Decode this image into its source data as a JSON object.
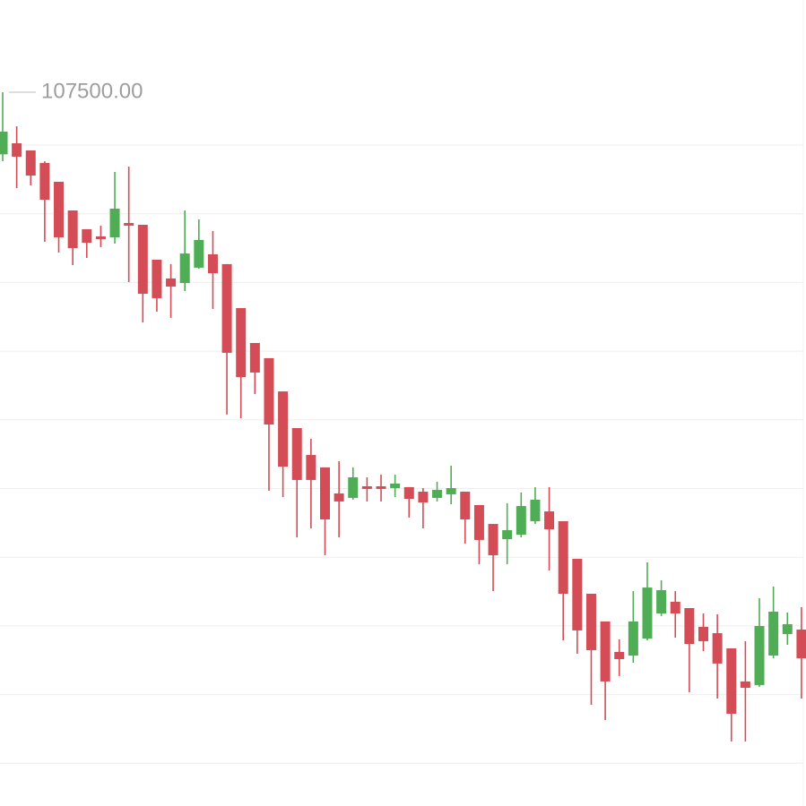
{
  "chart_data": {
    "type": "candlestick",
    "ylim": [
      102325,
      108169
    ],
    "up_color": "#4fae55",
    "down_color": "#d44c55",
    "max_annotation": {
      "value": 107500,
      "label": "107500.00"
    },
    "open": [
      107050,
      107130,
      107078,
      106987,
      106851,
      106643,
      106507,
      106455,
      106448,
      106552,
      106539,
      106286,
      106150,
      106117,
      106228,
      106325,
      106254,
      105935,
      105682,
      105572,
      105331,
      105065,
      104870,
      104780,
      104591,
      104559,
      104643,
      104643,
      104630,
      104637,
      104604,
      104559,
      104585,
      104604,
      104507,
      104370,
      104260,
      104292,
      104390,
      104461,
      104390,
      104117,
      103864,
      103663,
      103442,
      103416,
      103539,
      103721,
      103806,
      103760,
      103624,
      103578,
      103468,
      103228,
      103202,
      103416,
      103572,
      103604
    ],
    "high": [
      107500,
      107253,
      107078,
      107000,
      106851,
      106643,
      106507,
      106533,
      106922,
      106961,
      106539,
      106286,
      106254,
      106643,
      106578,
      106494,
      106254,
      105935,
      105682,
      105572,
      105331,
      105065,
      104987,
      104780,
      104825,
      104780,
      104708,
      104728,
      104728,
      104637,
      104630,
      104676,
      104793,
      104604,
      104507,
      104370,
      104520,
      104598,
      104637,
      104637,
      104390,
      104117,
      103864,
      103663,
      103533,
      103883,
      104091,
      103961,
      103883,
      103760,
      103721,
      103715,
      103468,
      103520,
      103832,
      103916,
      103728,
      103767
    ],
    "low": [
      107000,
      106805,
      106825,
      106416,
      106338,
      106247,
      106299,
      106377,
      106403,
      106124,
      105831,
      105909,
      105864,
      106059,
      106221,
      105929,
      105163,
      105137,
      105312,
      104611,
      104565,
      104273,
      104338,
      104143,
      104273,
      104546,
      104533,
      104533,
      104565,
      104416,
      104338,
      104533,
      104513,
      104228,
      104078,
      103883,
      104078,
      104273,
      104370,
      104033,
      103526,
      103429,
      103059,
      102948,
      103267,
      103364,
      103526,
      103702,
      103546,
      103150,
      103448,
      103104,
      102793,
      102793,
      103189,
      103396,
      103494,
      103104
    ],
    "close": [
      107215,
      107033,
      106896,
      106721,
      106448,
      106370,
      106409,
      106435,
      106656,
      106533,
      106039,
      106007,
      106091,
      106331,
      106429,
      106188,
      105611,
      105435,
      105468,
      105091,
      104786,
      104689,
      104689,
      104403,
      104533,
      104708,
      104624,
      104624,
      104663,
      104552,
      104526,
      104617,
      104630,
      104403,
      104254,
      104143,
      104325,
      104500,
      104546,
      104331,
      103864,
      103598,
      103455,
      103228,
      103390,
      103663,
      103909,
      103890,
      103721,
      103500,
      103520,
      103358,
      102994,
      103182,
      103630,
      103734,
      103643,
      103396
    ]
  }
}
